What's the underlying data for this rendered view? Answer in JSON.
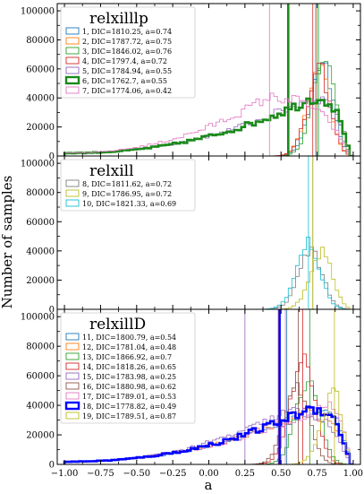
{
  "chart_data": {
    "type": "histogram",
    "xlabel": "a",
    "ylabel": "Number of samples",
    "xlim": [
      -1.05,
      1.05
    ],
    "ylim": [
      0,
      105000
    ],
    "x_ticks": [
      -1.0,
      -0.75,
      -0.5,
      -0.25,
      0.0,
      0.25,
      0.5,
      0.75,
      1.0
    ],
    "x_tick_labels": [
      "−1.00",
      "−0.75",
      "−0.50",
      "−0.25",
      "0.00",
      "0.25",
      "0.50",
      "0.75",
      "1.00"
    ],
    "y_ticks": [
      0,
      20000,
      40000,
      60000,
      80000,
      100000
    ],
    "y_tick_labels": [
      "0",
      "20000",
      "40000",
      "60000",
      "80000",
      "100000"
    ],
    "panels": [
      {
        "title": "relxilllp",
        "legend_position": "upper-left",
        "series": [
          {
            "name": "1, DIC=1810.25, a=0.74",
            "color": "#1f77b4",
            "a": 0.74,
            "bold": false,
            "shape": "peak",
            "peak_x": 0.8,
            "peak_y": 68000
          },
          {
            "name": "2, DIC=1787.72, a=0.75",
            "color": "#ff7f0e",
            "a": 0.75,
            "bold": false,
            "shape": "peak",
            "peak_x": 0.78,
            "peak_y": 62000
          },
          {
            "name": "3, DIC=1846.02, a=0.76",
            "color": "#2ca02c",
            "a": 0.76,
            "bold": false,
            "shape": "peak",
            "peak_x": 0.82,
            "peak_y": 72000
          },
          {
            "name": "4, DIC=1797.4, a=0.72",
            "color": "#d62728",
            "a": 0.72,
            "bold": false,
            "shape": "peak",
            "peak_x": 0.78,
            "peak_y": 60000
          },
          {
            "name": "5, DIC=1784.94, a=0.55",
            "color": "#9467bd",
            "a": 0.55,
            "bold": false,
            "shape": "broad",
            "peak_x": 0.7,
            "peak_y": 40000
          },
          {
            "name": "6, DIC=1762.7, a=0.55",
            "color": "#1a8a1a",
            "a": 0.55,
            "bold": true,
            "shape": "broad",
            "peak_x": 0.72,
            "peak_y": 40000
          },
          {
            "name": "7, DIC=1774.06, a=0.42",
            "color": "#e377c2",
            "a": 0.42,
            "bold": false,
            "shape": "broad",
            "peak_x": 0.4,
            "peak_y": 40000
          }
        ]
      },
      {
        "title": "relxill",
        "legend_position": "upper-left",
        "series": [
          {
            "name": "8, DIC=1811.62, a=0.72",
            "color": "#7f7f7f",
            "a": 0.72,
            "bold": false,
            "shape": "peak",
            "peak_x": 0.72,
            "peak_y": 42000
          },
          {
            "name": "9, DIC=1786.95, a=0.72",
            "color": "#bcbd22",
            "a": 0.72,
            "bold": false,
            "shape": "peak",
            "peak_x": 0.8,
            "peak_y": 40000
          },
          {
            "name": "10, DIC=1821.33, a=0.69",
            "color": "#17becf",
            "a": 0.69,
            "bold": false,
            "shape": "peak",
            "peak_x": 0.7,
            "peak_y": 46000
          }
        ]
      },
      {
        "title": "relxillD",
        "legend_position": "upper-left",
        "series": [
          {
            "name": "11, DIC=1800.79, a=0.54",
            "color": "#1f77b4",
            "a": 0.54,
            "bold": false,
            "shape": "broad",
            "peak_x": 0.75,
            "peak_y": 38000
          },
          {
            "name": "12, DIC=1781.04, a=0.48",
            "color": "#ff7f0e",
            "a": 0.48,
            "bold": false,
            "shape": "broad",
            "peak_x": 0.68,
            "peak_y": 36000
          },
          {
            "name": "13, DIC=1866.92, a=0.7",
            "color": "#2ca02c",
            "a": 0.7,
            "bold": false,
            "shape": "peak",
            "peak_x": 0.7,
            "peak_y": 60000
          },
          {
            "name": "14, DIC=1818.26, a=0.65",
            "color": "#d62728",
            "a": 0.65,
            "bold": false,
            "shape": "peak",
            "peak_x": 0.66,
            "peak_y": 76000
          },
          {
            "name": "15, DIC=1783.98, a=0.25",
            "color": "#9467bd",
            "a": 0.25,
            "bold": false,
            "shape": "broad",
            "peak_x": 0.55,
            "peak_y": 36000
          },
          {
            "name": "16, DIC=1880.98, a=0.62",
            "color": "#8c564b",
            "a": 0.62,
            "bold": false,
            "shape": "peak",
            "peak_x": 0.62,
            "peak_y": 55000
          },
          {
            "name": "17, DIC=1789.01, a=0.53",
            "color": "#e377c2",
            "a": 0.53,
            "bold": false,
            "shape": "broad",
            "peak_x": 0.8,
            "peak_y": 40000
          },
          {
            "name": "18, DIC=1778.82, a=0.49",
            "color": "#0000ff",
            "a": 0.49,
            "bold": true,
            "shape": "broad",
            "peak_x": 0.7,
            "peak_y": 38000
          },
          {
            "name": "19, DIC=1789.51, a=0.87",
            "color": "#bcbd22",
            "a": 0.87,
            "bold": false,
            "shape": "peak",
            "peak_x": 0.88,
            "peak_y": 50000
          }
        ]
      }
    ]
  }
}
